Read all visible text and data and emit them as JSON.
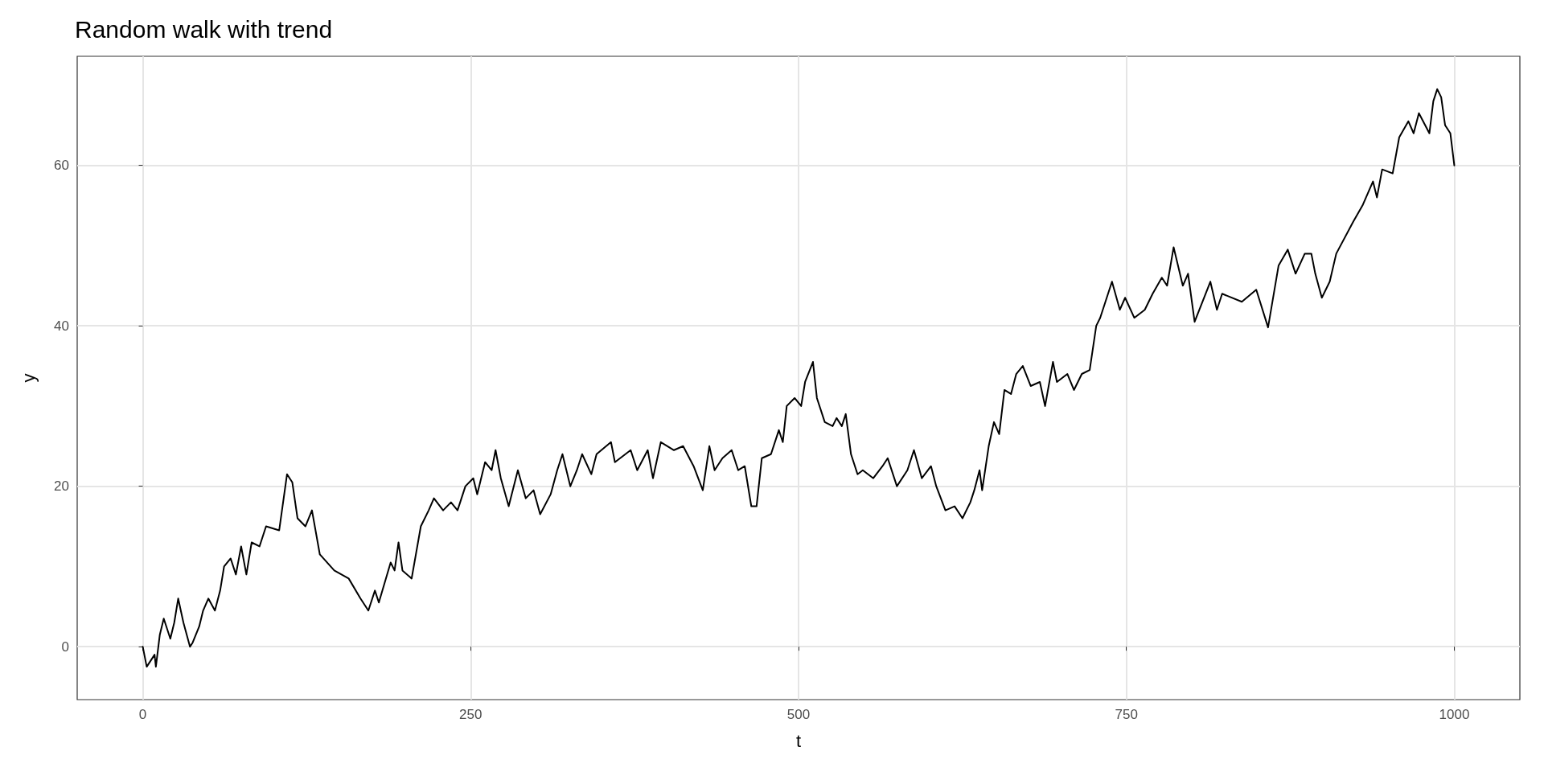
{
  "chart_data": {
    "type": "line",
    "title": "Random walk with trend",
    "xlabel": "t",
    "ylabel": "y",
    "xlim": [
      -50,
      1050
    ],
    "ylim": [
      -6.6,
      73.6
    ],
    "xticks": [
      0,
      250,
      500,
      750,
      1000
    ],
    "yticks": [
      0,
      20,
      40,
      60
    ],
    "grid": true,
    "marker": "none",
    "line_style": "solid",
    "series": [
      {
        "color": "#000000",
        "x": [
          0,
          3,
          9,
          10,
          13,
          16,
          21,
          24,
          27,
          31,
          36,
          38,
          43,
          46,
          50,
          55,
          59,
          62,
          67,
          71,
          75,
          79,
          83,
          89,
          94,
          104,
          110,
          114,
          118,
          124,
          129,
          135,
          146,
          157,
          166,
          172,
          177,
          180,
          189,
          192,
          195,
          198,
          205,
          212,
          218,
          222,
          229,
          235,
          240,
          246,
          252,
          255,
          261,
          266,
          269,
          273,
          279,
          286,
          292,
          298,
          303,
          311,
          316,
          320,
          326,
          331,
          335,
          342,
          346,
          357,
          360,
          372,
          377,
          385,
          389,
          395,
          405,
          412,
          420,
          427,
          432,
          436,
          442,
          449,
          454,
          459,
          464,
          468,
          472,
          479,
          485,
          488,
          491,
          497,
          502,
          505,
          511,
          514,
          520,
          526,
          529,
          533,
          536,
          540,
          545,
          549,
          557,
          564,
          568,
          575,
          583,
          588,
          594,
          601,
          605,
          612,
          619,
          625,
          631,
          634,
          638,
          640,
          645,
          649,
          653,
          657,
          662,
          666,
          671,
          677,
          684,
          688,
          694,
          697,
          705,
          710,
          716,
          722,
          727,
          730,
          739,
          745,
          749,
          756,
          764,
          770,
          777,
          781,
          786,
          793,
          797,
          802,
          814,
          819,
          823,
          838,
          849,
          858,
          866,
          873,
          879,
          886,
          891,
          894,
          899,
          905,
          910,
          923,
          930,
          938,
          941,
          945,
          953,
          958,
          965,
          969,
          973,
          981,
          984,
          987,
          990,
          993,
          997,
          1000
        ],
        "values": [
          0,
          -2.5,
          -1,
          -2.5,
          1.5,
          3.5,
          1,
          3,
          6,
          3,
          0,
          0.5,
          2.5,
          4.5,
          6,
          4.5,
          7,
          10,
          11,
          9,
          12.5,
          9,
          13,
          12.5,
          15,
          14.5,
          21.5,
          20.5,
          16,
          15,
          17,
          11.5,
          9.5,
          8.5,
          6,
          4.5,
          7,
          5.5,
          10.5,
          9.5,
          13,
          9.5,
          8.5,
          15,
          17,
          18.5,
          17,
          18,
          17,
          20,
          21,
          19,
          23,
          22,
          24.5,
          21,
          17.5,
          22,
          18.5,
          19.5,
          16.5,
          19,
          22,
          24,
          20,
          22,
          24,
          21.5,
          24,
          25.5,
          23,
          24.5,
          22,
          24.5,
          21,
          25.5,
          24.5,
          25,
          22.5,
          19.5,
          25,
          22,
          23.5,
          24.5,
          22,
          22.5,
          17.5,
          17.5,
          23.5,
          24,
          27,
          25.5,
          30,
          31,
          30,
          33,
          35.5,
          31,
          28,
          27.5,
          28.5,
          27.5,
          29,
          24,
          21.5,
          22,
          21,
          22.5,
          23.5,
          20,
          22,
          24.5,
          21,
          22.5,
          20,
          17,
          17.5,
          16,
          18,
          19.5,
          22,
          19.5,
          25,
          28,
          26.5,
          32,
          31.5,
          34,
          35,
          32.5,
          33,
          30,
          35.5,
          33,
          34,
          32,
          34,
          34.5,
          40,
          41,
          45.5,
          42,
          43.5,
          41,
          42,
          44,
          46,
          45,
          49.8,
          45,
          46.5,
          40.5,
          45.5,
          42,
          44,
          43,
          44.5,
          39.8,
          47.5,
          49.5,
          46.5,
          49,
          49,
          46.5,
          43.5,
          45.5,
          49,
          53,
          55,
          58,
          56,
          59.5,
          59,
          63.5,
          65.5,
          64,
          66.5,
          64,
          68,
          69.5,
          68.5,
          65,
          64,
          60
        ]
      }
    ]
  }
}
